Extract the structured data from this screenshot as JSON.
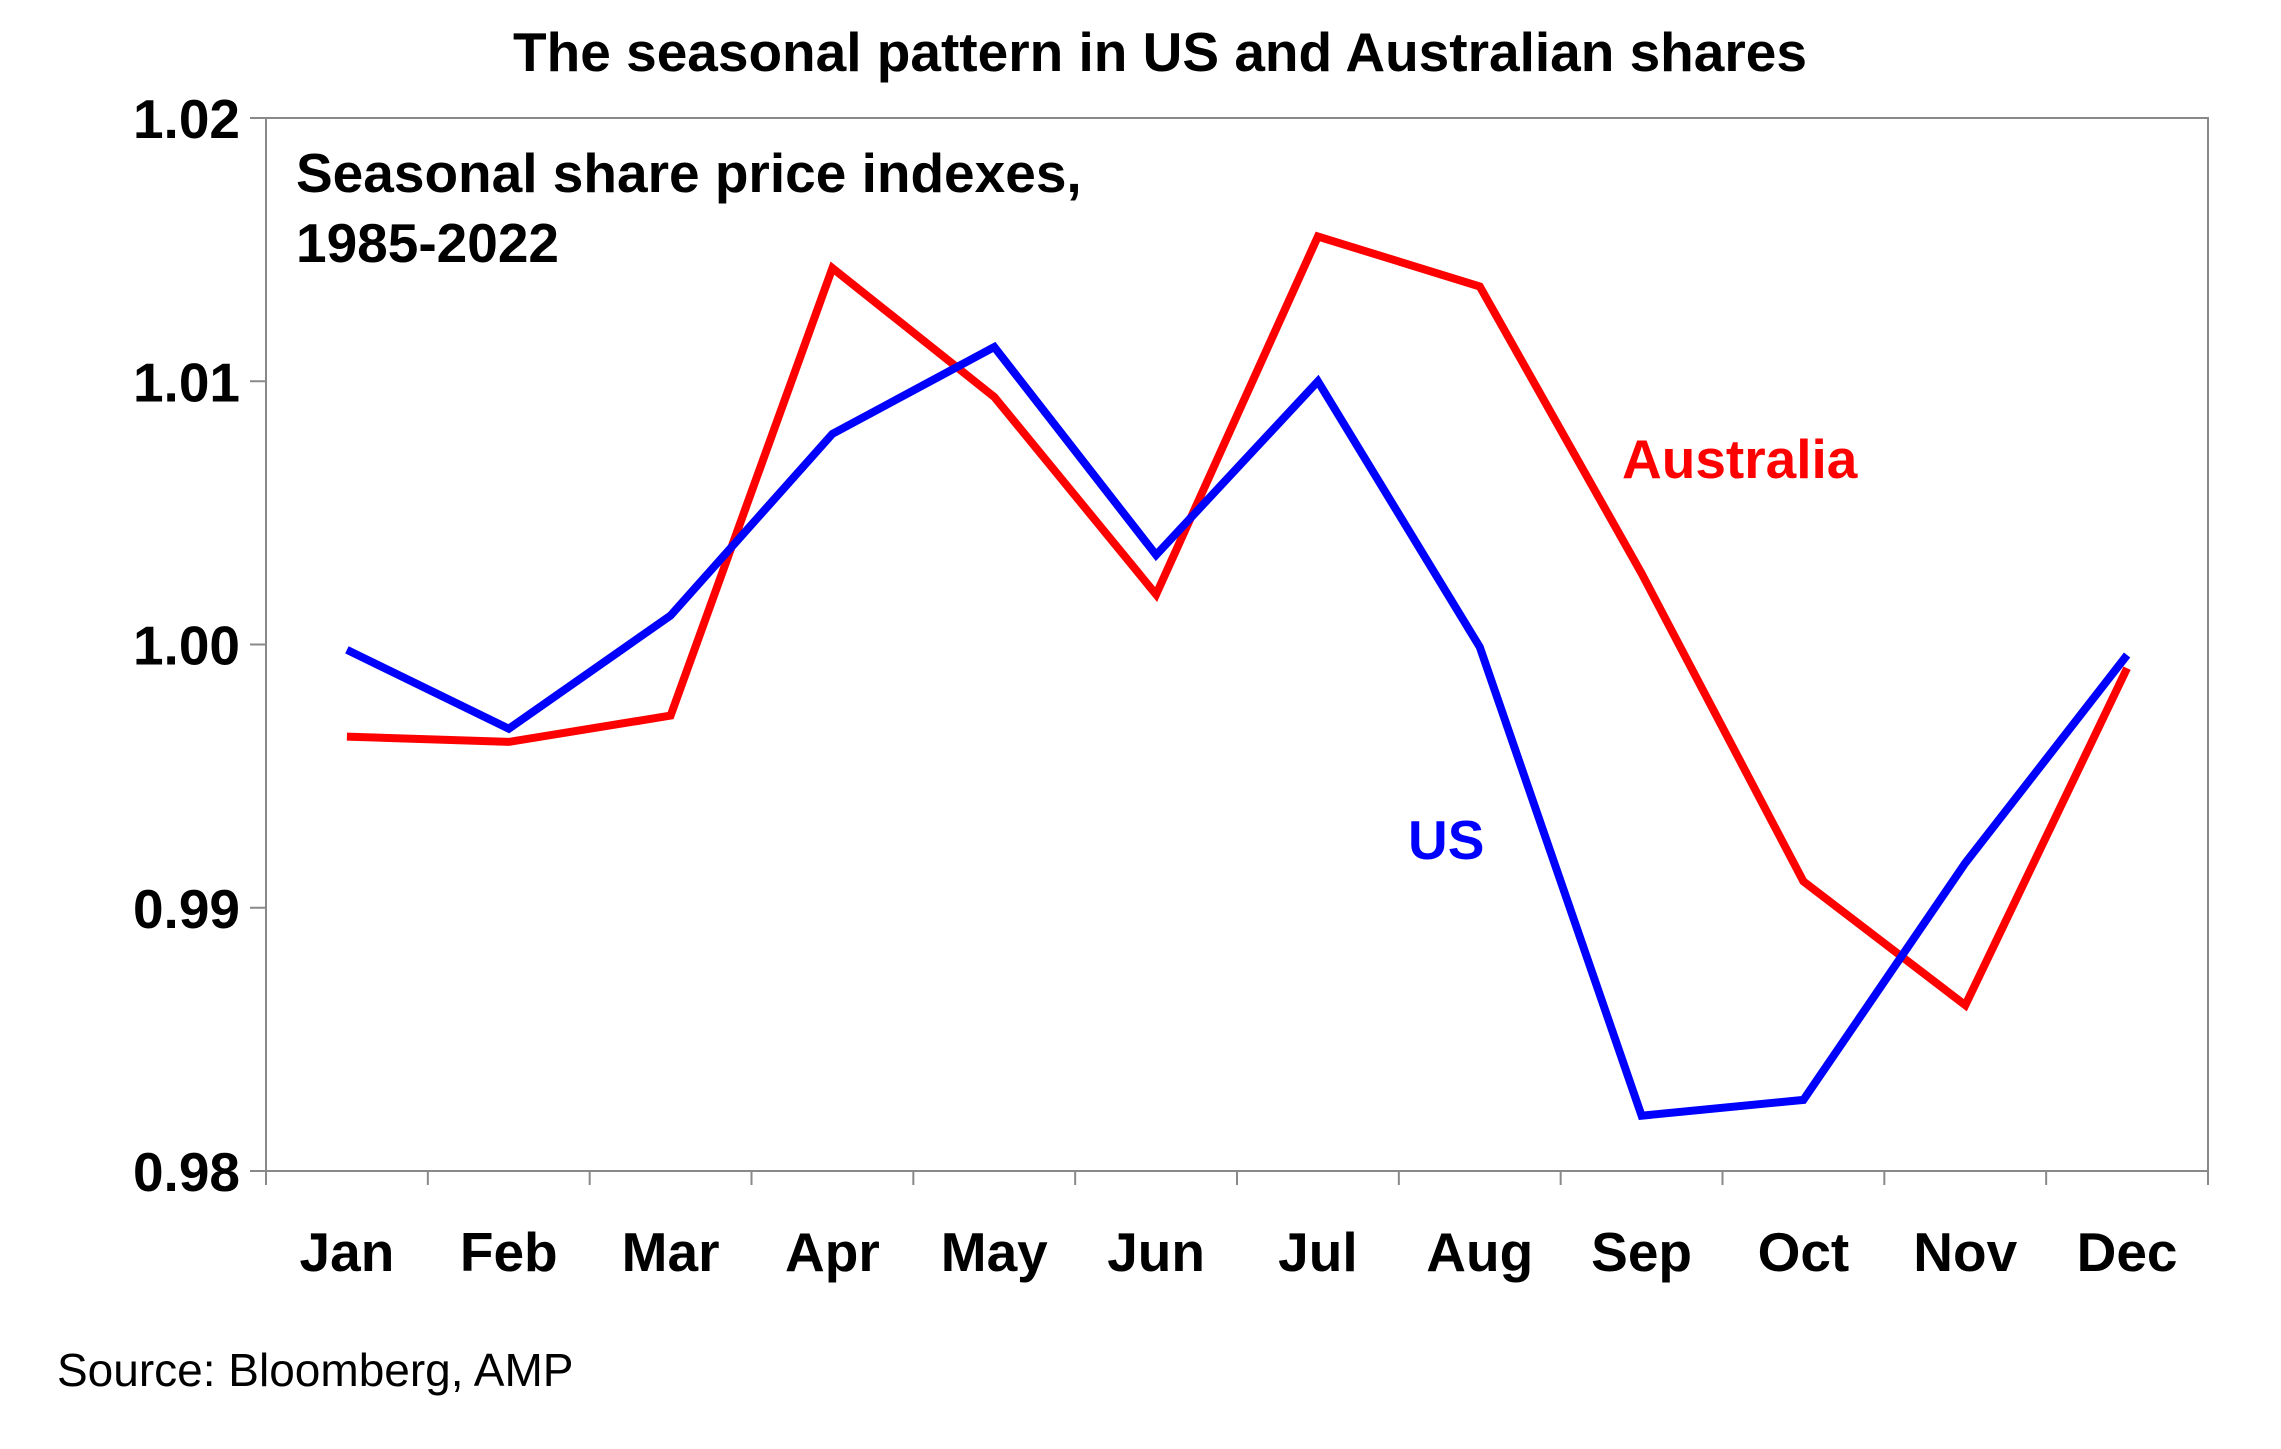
{
  "chart_data": {
    "type": "line",
    "title": "The seasonal pattern in US and Australian shares",
    "subtitle_lines": [
      "Seasonal share price indexes,",
      "1985-2022"
    ],
    "categories": [
      "Jan",
      "Feb",
      "Mar",
      "Apr",
      "May",
      "Jun",
      "Jul",
      "Aug",
      "Sep",
      "Oct",
      "Nov",
      "Dec"
    ],
    "ylim": [
      0.98,
      1.02
    ],
    "yticks": [
      0.98,
      0.99,
      1.0,
      1.01,
      1.02
    ],
    "ytick_labels": [
      "0.98",
      "0.99",
      "1.00",
      "1.01",
      "1.02"
    ],
    "grid": false,
    "legend": "none",
    "series": [
      {
        "name": "Australia",
        "color": "#ff0000",
        "values": [
          0.9965,
          0.9963,
          0.9973,
          1.0143,
          1.0094,
          1.0019,
          1.0155,
          1.0136,
          1.0027,
          0.991,
          0.9863,
          0.9991
        ]
      },
      {
        "name": "US",
        "color": "#0000ff",
        "values": [
          0.9998,
          0.9968,
          1.0011,
          1.008,
          1.0113,
          1.0034,
          1.01,
          0.9999,
          0.9821,
          0.9827,
          0.9917,
          0.9996
        ]
      }
    ],
    "source": "Source: Bloomberg, AMP"
  }
}
